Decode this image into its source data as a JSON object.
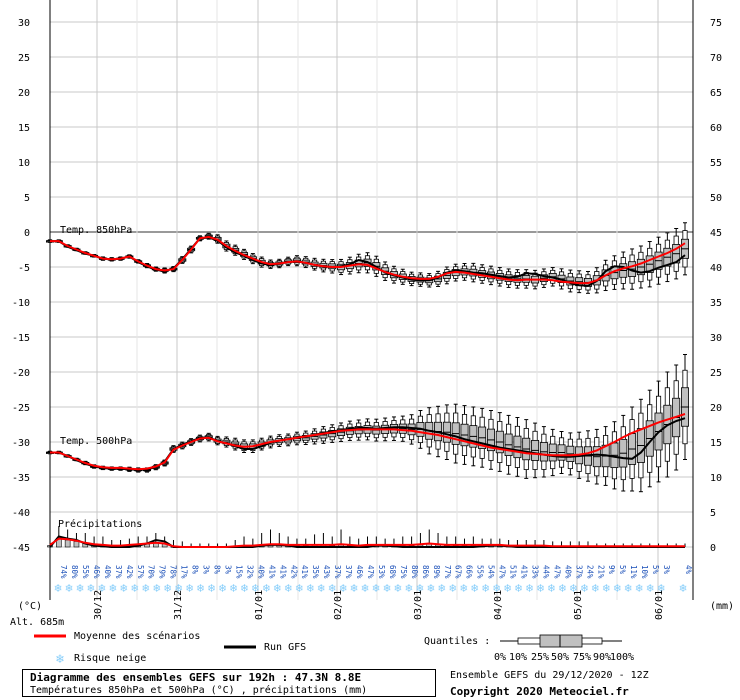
{
  "chart_data": {
    "type": "ensemble-boxplot",
    "title": "Diagramme des ensembles GEFS sur 192h : 47.3N 8.8E",
    "subtitle": "Températures 850hPa et 500hPa (°C) , précipitations (mm)",
    "run_info": "Ensemble GEFS du 29/12/2020 - 12Z",
    "copyright": "Copyright 2020 Meteociel.fr",
    "altitude": "Alt. 685m",
    "left_axis": {
      "unit_label": "(°C)",
      "ticks": [
        "30",
        "25",
        "20",
        "15",
        "10",
        "5",
        "0",
        "-5",
        "-10",
        "-15",
        "-20",
        "-25",
        "-30",
        "-35",
        "-40",
        "-45"
      ]
    },
    "right_axis": {
      "unit_label": "(mm)",
      "ticks": [
        "75",
        "70",
        "65",
        "60",
        "55",
        "50",
        "45",
        "40",
        "35",
        "30",
        "25",
        "20",
        "15",
        "10",
        "5",
        "0"
      ]
    },
    "date_labels": [
      "30/12",
      "31/12",
      "01/01",
      "02/01",
      "03/01",
      "04/01",
      "05/01",
      "06/01"
    ],
    "series_labels": {
      "t850": "Temp. 850hPa",
      "t500": "Temp. 500hPa",
      "precip": "Précipitations"
    },
    "legend": {
      "mean": "Moyenne des scénarios",
      "run": "Run GFS",
      "snow": "Risque neige",
      "quantiles_title": "Quantiles :",
      "quantile_labels": [
        "0%",
        "10%",
        "25%",
        "50%",
        "75%",
        "90%",
        "100%"
      ]
    },
    "colors": {
      "mean": "#ff0000",
      "run": "#000000",
      "box": "#c0c0c0",
      "snow": "#87cefa",
      "snowtext": "#1a4fb8"
    },
    "step_hours": 3,
    "t850_median": [
      -1.3,
      -1.3,
      -2.0,
      -2.5,
      -3.0,
      -3.4,
      -3.8,
      -3.9,
      -3.8,
      -3.5,
      -4.2,
      -4.8,
      -5.3,
      -5.5,
      -5.3,
      -4.0,
      -2.5,
      -0.9,
      -0.6,
      -1.0,
      -2.0,
      -2.6,
      -3.2,
      -3.8,
      -4.3,
      -4.6,
      -4.5,
      -4.2,
      -4.1,
      -4.3,
      -4.6,
      -4.8,
      -4.9,
      -5.0,
      -4.8,
      -4.5,
      -4.4,
      -4.9,
      -5.6,
      -6.1,
      -6.4,
      -6.7,
      -6.8,
      -6.9,
      -6.7,
      -6.2,
      -5.8,
      -5.7,
      -5.8,
      -6.0,
      -6.2,
      -6.4,
      -6.6,
      -6.7,
      -6.7,
      -6.8,
      -6.6,
      -6.4,
      -6.7,
      -7.0,
      -7.1,
      -7.2,
      -6.9,
      -6.2,
      -5.8,
      -5.5,
      -5.3,
      -5.0,
      -4.6,
      -4.1,
      -3.6,
      -3.1,
      -2.4
    ],
    "t850_spread": [
      0.3,
      0.3,
      0.3,
      0.3,
      0.3,
      0.3,
      0.4,
      0.4,
      0.4,
      0.4,
      0.4,
      0.5,
      0.5,
      0.6,
      0.6,
      0.8,
      0.8,
      0.6,
      0.7,
      1.0,
      1.2,
      1.2,
      1.2,
      1.2,
      1.2,
      1.0,
      1.0,
      1.0,
      1.2,
      1.3,
      1.4,
      1.5,
      1.6,
      1.8,
      2.0,
      2.2,
      2.4,
      2.4,
      2.2,
      2.0,
      1.8,
      1.6,
      1.6,
      1.6,
      1.8,
      2.0,
      2.0,
      2.0,
      2.2,
      2.2,
      2.2,
      2.2,
      2.2,
      2.2,
      2.2,
      2.2,
      2.2,
      2.2,
      2.4,
      2.6,
      2.6,
      2.6,
      3.0,
      3.6,
      4.0,
      4.4,
      4.8,
      5.0,
      5.4,
      5.6,
      5.8,
      6.0,
      6.2
    ],
    "t850_run": [
      -1.3,
      -1.3,
      -2.1,
      -2.6,
      -3.1,
      -3.4,
      -3.8,
      -3.9,
      -3.8,
      -3.5,
      -4.3,
      -4.9,
      -5.4,
      -5.6,
      -5.2,
      -3.9,
      -2.4,
      -0.9,
      -0.8,
      -1.2,
      -2.2,
      -2.9,
      -3.4,
      -4.0,
      -4.5,
      -4.7,
      -4.5,
      -4.3,
      -4.2,
      -4.4,
      -4.7,
      -4.9,
      -5.0,
      -4.9,
      -4.6,
      -4.0,
      -4.3,
      -5.0,
      -5.8,
      -6.2,
      -6.5,
      -6.8,
      -6.9,
      -6.9,
      -6.5,
      -5.8,
      -5.5,
      -5.6,
      -5.8,
      -5.9,
      -6.1,
      -6.3,
      -6.5,
      -6.4,
      -5.9,
      -6.0,
      -6.3,
      -6.5,
      -6.8,
      -7.3,
      -7.6,
      -7.7,
      -7.0,
      -5.6,
      -4.9,
      -5.0,
      -5.5,
      -5.8,
      -5.6,
      -5.1,
      -4.7,
      -4.3,
      -3.3
    ],
    "t850_mean": [
      -1.3,
      -1.3,
      -2.0,
      -2.5,
      -3.0,
      -3.4,
      -3.8,
      -3.9,
      -3.8,
      -3.5,
      -4.2,
      -4.8,
      -5.3,
      -5.5,
      -5.3,
      -4.0,
      -2.5,
      -0.9,
      -0.7,
      -1.1,
      -2.0,
      -2.7,
      -3.3,
      -3.8,
      -4.3,
      -4.6,
      -4.5,
      -4.3,
      -4.2,
      -4.4,
      -4.7,
      -4.9,
      -5.0,
      -5.0,
      -4.8,
      -4.6,
      -4.7,
      -5.2,
      -5.7,
      -6.1,
      -6.4,
      -6.6,
      -6.7,
      -6.7,
      -6.4,
      -5.9,
      -5.7,
      -5.8,
      -6.0,
      -6.2,
      -6.4,
      -6.6,
      -6.8,
      -6.9,
      -6.8,
      -6.8,
      -6.8,
      -6.9,
      -7.1,
      -7.2,
      -7.3,
      -7.3,
      -6.9,
      -6.2,
      -5.6,
      -5.2,
      -4.9,
      -4.5,
      -4.0,
      -3.5,
      -3.0,
      -2.4,
      -1.6
    ],
    "t500_median": [
      -31.5,
      -31.5,
      -32.0,
      -32.5,
      -33.0,
      -33.5,
      -33.7,
      -33.8,
      -33.8,
      -33.9,
      -34.0,
      -34.0,
      -33.6,
      -33.0,
      -31.0,
      -30.5,
      -30.0,
      -29.5,
      -29.3,
      -29.8,
      -30.0,
      -30.3,
      -30.6,
      -30.6,
      -30.3,
      -30.0,
      -29.8,
      -29.7,
      -29.5,
      -29.4,
      -29.2,
      -29.0,
      -28.8,
      -28.6,
      -28.4,
      -28.3,
      -28.2,
      -28.3,
      -28.2,
      -28.1,
      -28.1,
      -28.2,
      -28.2,
      -28.4,
      -28.5,
      -28.6,
      -28.8,
      -29.0,
      -29.2,
      -29.4,
      -29.7,
      -30.0,
      -30.4,
      -30.7,
      -31.0,
      -31.2,
      -31.4,
      -31.5,
      -31.5,
      -31.7,
      -31.9,
      -32.0,
      -32.1,
      -32.0,
      -31.9,
      -31.6,
      -31.0,
      -30.5,
      -29.5,
      -28.5,
      -27.5,
      -26.5,
      -25.0
    ],
    "t500_spread": [
      0.3,
      0.3,
      0.3,
      0.3,
      0.4,
      0.4,
      0.4,
      0.4,
      0.4,
      0.5,
      0.5,
      0.5,
      0.6,
      0.7,
      0.8,
      0.8,
      0.8,
      0.8,
      0.9,
      1.0,
      1.2,
      1.4,
      1.5,
      1.5,
      1.4,
      1.4,
      1.4,
      1.4,
      1.5,
      1.6,
      1.8,
      2.0,
      2.1,
      2.2,
      2.3,
      2.4,
      2.5,
      2.6,
      2.7,
      2.8,
      3.0,
      3.5,
      4.5,
      5.5,
      6.0,
      6.5,
      7.0,
      7.0,
      7.0,
      7.0,
      7.0,
      7.0,
      7.0,
      7.0,
      7.0,
      6.5,
      6.0,
      5.5,
      5.0,
      5.0,
      5.5,
      6.0,
      6.5,
      7.0,
      8.0,
      9.0,
      10.0,
      11.0,
      11.5,
      12.0,
      12.5,
      12.5,
      12.5
    ],
    "t500_run": [
      -31.5,
      -31.5,
      -32.0,
      -32.6,
      -33.1,
      -33.5,
      -33.7,
      -33.8,
      -33.8,
      -33.9,
      -34.0,
      -33.9,
      -33.6,
      -32.8,
      -31.0,
      -30.4,
      -29.9,
      -29.4,
      -29.3,
      -29.9,
      -30.2,
      -30.6,
      -31.0,
      -31.0,
      -30.6,
      -30.1,
      -29.8,
      -29.6,
      -29.4,
      -29.2,
      -29.0,
      -28.7,
      -28.5,
      -28.3,
      -28.1,
      -28.0,
      -28.0,
      -28.1,
      -28.0,
      -27.9,
      -27.9,
      -28.0,
      -28.1,
      -28.4,
      -28.6,
      -28.9,
      -29.2,
      -29.6,
      -29.9,
      -30.2,
      -30.5,
      -30.8,
      -31.0,
      -31.2,
      -31.4,
      -31.6,
      -31.8,
      -32.0,
      -32.1,
      -32.1,
      -32.0,
      -31.9,
      -31.8,
      -31.9,
      -32.1,
      -32.3,
      -32.4,
      -31.5,
      -30.0,
      -28.6,
      -27.6,
      -27.0,
      -26.6
    ],
    "t500_mean": [
      -31.5,
      -31.5,
      -32.0,
      -32.5,
      -33.0,
      -33.4,
      -33.6,
      -33.7,
      -33.7,
      -33.8,
      -33.9,
      -33.8,
      -33.5,
      -32.9,
      -31.1,
      -30.5,
      -30.0,
      -29.5,
      -29.4,
      -29.9,
      -30.2,
      -30.5,
      -30.7,
      -30.6,
      -30.3,
      -30.0,
      -29.8,
      -29.6,
      -29.4,
      -29.2,
      -29.0,
      -28.8,
      -28.6,
      -28.4,
      -28.3,
      -28.2,
      -28.2,
      -28.2,
      -28.2,
      -28.2,
      -28.3,
      -28.4,
      -28.6,
      -28.8,
      -29.0,
      -29.3,
      -29.6,
      -29.9,
      -30.2,
      -30.5,
      -30.8,
      -31.0,
      -31.2,
      -31.4,
      -31.6,
      -31.7,
      -31.8,
      -31.9,
      -31.9,
      -31.9,
      -31.8,
      -31.6,
      -31.2,
      -30.6,
      -30.0,
      -29.3,
      -28.7,
      -28.2,
      -27.7,
      -27.2,
      -26.8,
      -26.4,
      -26.0
    ],
    "precip_median": [
      0.2,
      1.2,
      1.0,
      0.8,
      0.5,
      0.3,
      0.2,
      0.1,
      0.1,
      0.2,
      0.3,
      0.4,
      0.6,
      0.5,
      0.1,
      0,
      0,
      0,
      0,
      0,
      0,
      0.1,
      0.2,
      0.2,
      0.3,
      0.4,
      0.4,
      0.3,
      0.2,
      0.2,
      0.3,
      0.3,
      0.2,
      0.3,
      0.2,
      0.1,
      0.2,
      0.2,
      0.2,
      0.2,
      0.2,
      0.2,
      0.3,
      0.4,
      0.3,
      0.2,
      0.2,
      0.2,
      0.2,
      0.2,
      0.2,
      0.2,
      0.2,
      0.1,
      0.1,
      0.1,
      0.1,
      0.1,
      0.1,
      0.1,
      0.1,
      0,
      0,
      0,
      0,
      0,
      0,
      0,
      0,
      0,
      0,
      0,
      0
    ],
    "precip_max": [
      1.5,
      3.0,
      2.5,
      2.0,
      2.0,
      1.5,
      1.5,
      1.0,
      1.0,
      1.2,
      1.5,
      1.5,
      2.0,
      1.5,
      1.0,
      0.8,
      0.5,
      0.5,
      0.5,
      0.5,
      0.5,
      1.0,
      1.5,
      1.2,
      2.0,
      2.5,
      2.0,
      1.5,
      1.2,
      1.2,
      1.8,
      2.0,
      1.5,
      2.5,
      1.5,
      1.2,
      1.5,
      1.5,
      1.2,
      1.2,
      1.5,
      1.5,
      2.0,
      2.5,
      2.0,
      1.5,
      1.5,
      1.2,
      1.5,
      1.2,
      1.2,
      1.2,
      1.0,
      1.0,
      1.0,
      1.0,
      1.0,
      0.8,
      0.8,
      0.8,
      0.8,
      0.8,
      0.5,
      0.5,
      0.5,
      0.5,
      0.5,
      0.5,
      0.5,
      0.5,
      0.5,
      0.5,
      0.5
    ],
    "precip_run": [
      0,
      1.5,
      1.2,
      1.0,
      0.5,
      0.2,
      0.1,
      0,
      0,
      0,
      0.2,
      0.5,
      1.0,
      0.8,
      0,
      0,
      0,
      0,
      0,
      0,
      0,
      0,
      0,
      0,
      0.2,
      0.3,
      0.3,
      0.2,
      0,
      0,
      0,
      0,
      0,
      0,
      0,
      0,
      0,
      0.2,
      0.2,
      0.1,
      0,
      0,
      0,
      0,
      0,
      0,
      0,
      0,
      0,
      0.1,
      0.2,
      0.2,
      0.1,
      0,
      0,
      0,
      0,
      0,
      0,
      0,
      0,
      0,
      0,
      0,
      0,
      0,
      0,
      0,
      0,
      0,
      0,
      0,
      0
    ],
    "precip_mean": [
      0.3,
      1.2,
      1.1,
      0.9,
      0.6,
      0.4,
      0.3,
      0.2,
      0.2,
      0.3,
      0.4,
      0.5,
      0.6,
      0.5,
      0.1,
      0,
      0,
      0,
      0,
      0,
      0,
      0.1,
      0.2,
      0.2,
      0.3,
      0.4,
      0.4,
      0.3,
      0.3,
      0.3,
      0.3,
      0.3,
      0.3,
      0.4,
      0.3,
      0.2,
      0.3,
      0.3,
      0.3,
      0.3,
      0.3,
      0.3,
      0.4,
      0.5,
      0.4,
      0.3,
      0.3,
      0.3,
      0.3,
      0.3,
      0.3,
      0.3,
      0.2,
      0.2,
      0.2,
      0.2,
      0.2,
      0.1,
      0.1,
      0.1,
      0.1,
      0.1,
      0.1,
      0.1,
      0.1,
      0.1,
      0.1,
      0.1,
      0.1,
      0.1,
      0.1,
      0.1,
      0.1
    ],
    "snow_risk_pct": [
      "74%",
      "80%",
      "55%",
      "46%",
      "40%",
      "37%",
      "42%",
      "57%",
      "70%",
      "79%",
      "78%",
      "17%",
      "8%",
      "3%",
      "8%",
      "3%",
      "15%",
      "32%",
      "40%",
      "41%",
      "41%",
      "42%",
      "41%",
      "35%",
      "43%",
      "37%",
      "37%",
      "46%",
      "47%",
      "53%",
      "68%",
      "75%",
      "80%",
      "86%",
      "89%",
      "77%",
      "67%",
      "66%",
      "55%",
      "54%",
      "47%",
      "51%",
      "41%",
      "33%",
      "44%",
      "47%",
      "40%",
      "37%",
      "24%",
      "21%",
      "9%",
      "5%",
      "11%",
      "10%",
      "5%",
      "3%",
      "",
      "4%"
    ]
  }
}
